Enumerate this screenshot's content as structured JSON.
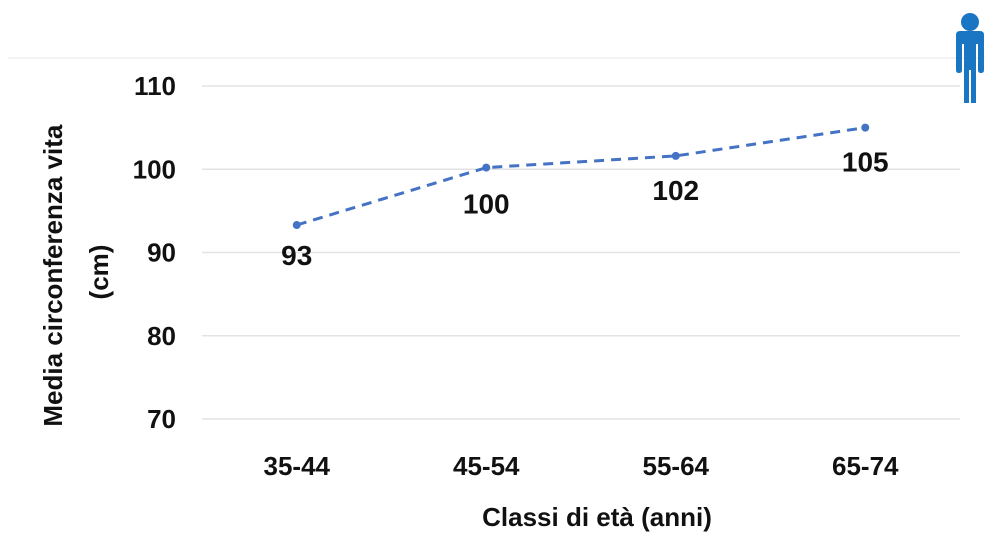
{
  "chart_data": {
    "type": "line",
    "title": "",
    "xlabel": "Classi di età (anni)",
    "ylabel_lines": [
      "Media circonferenza vita",
      "(cm)"
    ],
    "categories": [
      "35-44",
      "45-54",
      "55-64",
      "65-74"
    ],
    "series": [
      {
        "values": [
          93.3,
          100.2,
          101.6,
          105.0
        ],
        "labels": [
          "93",
          "100",
          "102",
          "105"
        ],
        "color": "#4472C4",
        "line_style": "dashed",
        "marker": "circle"
      }
    ],
    "ylim": [
      70,
      110
    ],
    "yticks": [
      "70",
      "80",
      "90",
      "100",
      "110"
    ],
    "grid": true,
    "legend": "none"
  },
  "icon": {
    "name": "man-icon",
    "color": "#1A76C2"
  },
  "colors": {
    "grid": "#E3E3E3",
    "text": "#111111",
    "series": "#4472C4"
  }
}
